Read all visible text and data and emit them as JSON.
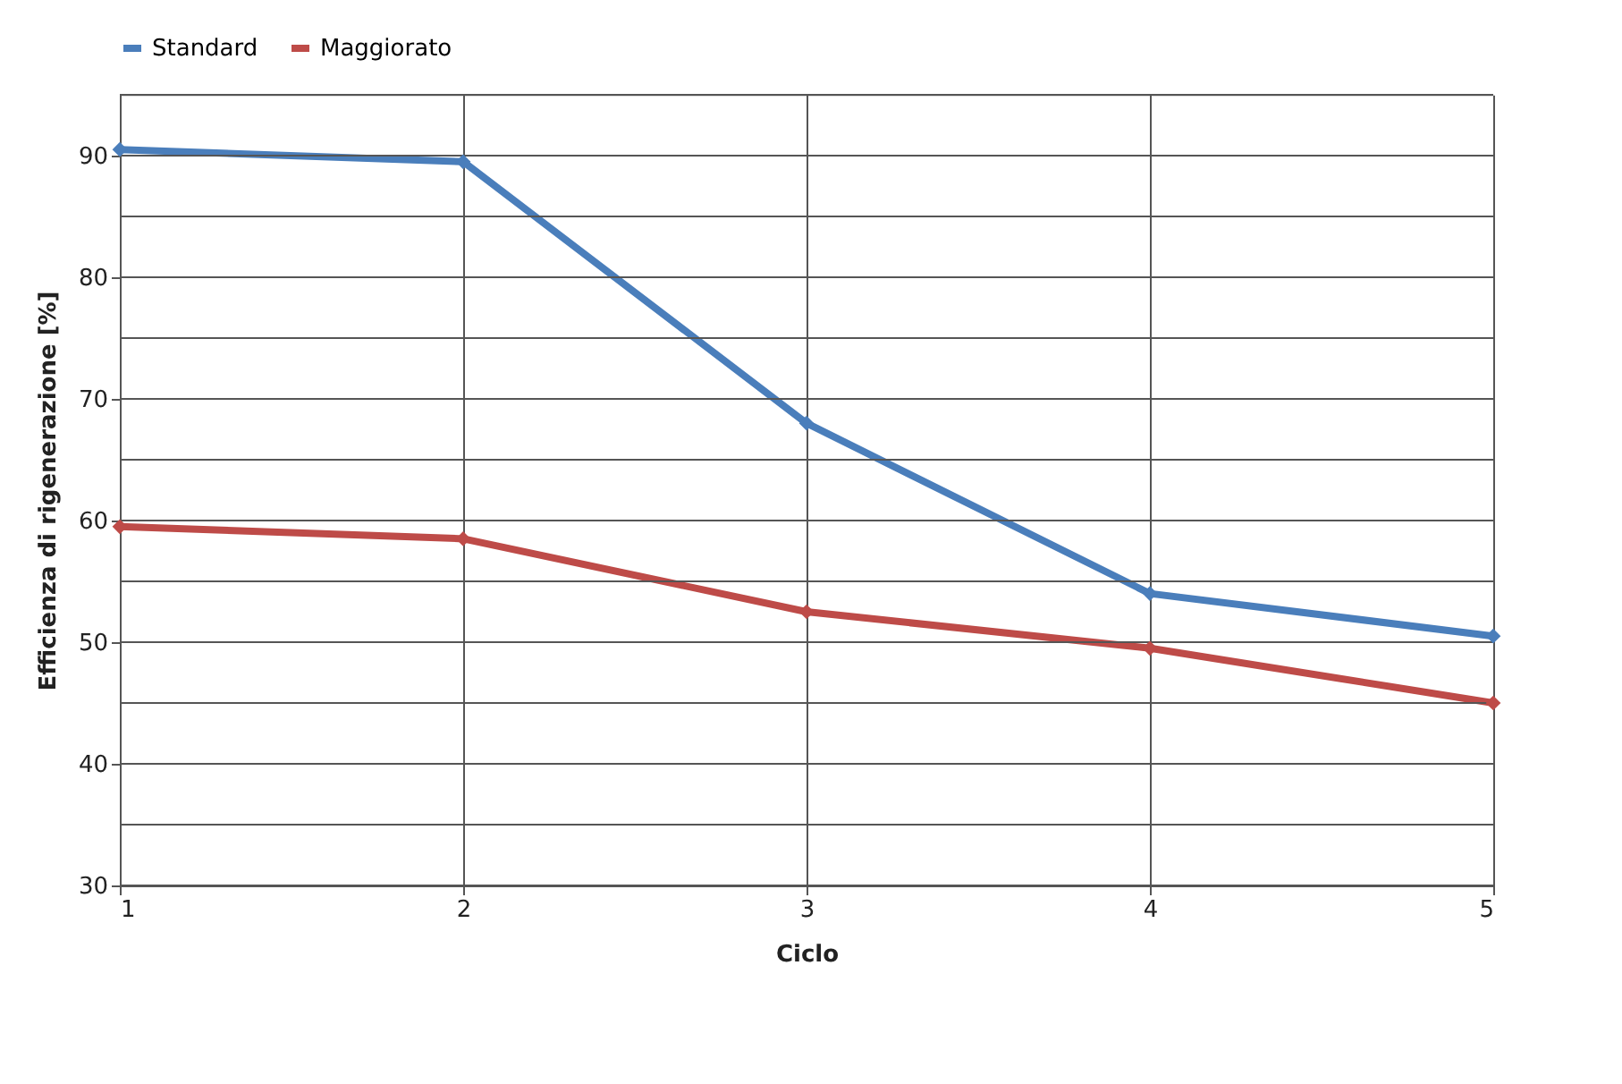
{
  "chart_data": {
    "type": "line",
    "xlabel": "Ciclo",
    "ylabel": "Efficienza  di rigenerazione  [%]",
    "x": [
      1,
      2,
      3,
      4,
      5
    ],
    "series": [
      {
        "name": "Standard",
        "color": "#4a7ebb",
        "values": [
          90.5,
          89.5,
          68,
          54,
          50.5
        ]
      },
      {
        "name": "Maggiorato",
        "color": "#be4b48",
        "values": [
          59.5,
          58.5,
          52.5,
          49.5,
          45
        ]
      }
    ],
    "xlim": [
      1,
      5
    ],
    "xticks": [
      1,
      2,
      3,
      4,
      5
    ],
    "ylim": [
      30,
      95
    ],
    "yticks": [
      30,
      {
        "value": 35,
        "label": null
      },
      40,
      {
        "value": 45,
        "label": null
      },
      50,
      {
        "value": 55,
        "label": null
      },
      60,
      {
        "value": 65,
        "label": null
      },
      70,
      {
        "value": 75,
        "label": null
      },
      80,
      {
        "value": 85,
        "label": null
      },
      90,
      {
        "value": 95,
        "label": null
      }
    ],
    "grid": true,
    "legend": "top",
    "marker": "diamond",
    "line_style": "solid"
  }
}
